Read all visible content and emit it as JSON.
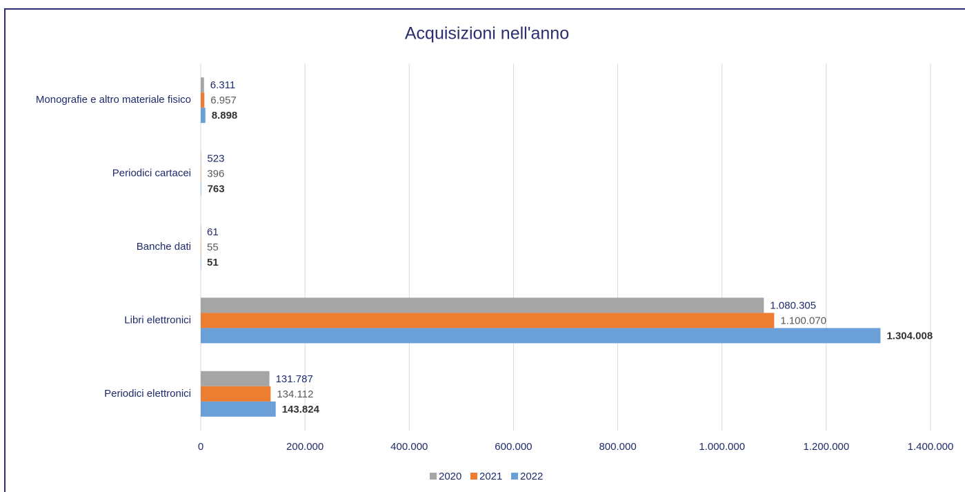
{
  "chart_data": {
    "type": "bar",
    "orientation": "horizontal",
    "title": "Acquisizioni nell'anno",
    "categories": [
      "Monografie e altro materiale fisico",
      "Periodici cartacei",
      "Banche dati",
      "Libri elettronici",
      "Periodici elettronici"
    ],
    "series": [
      {
        "name": "2020",
        "color": "#a5a5a5",
        "values": [
          6311,
          523,
          61,
          1080305,
          131787
        ],
        "value_labels": [
          "6.311",
          "523",
          "61",
          "1.080.305",
          "131.787"
        ]
      },
      {
        "name": "2021",
        "color": "#ed7d31",
        "values": [
          6957,
          396,
          55,
          1100070,
          134112
        ],
        "value_labels": [
          "6.957",
          "396",
          "55",
          "1.100.070",
          "134.112"
        ]
      },
      {
        "name": "2022",
        "color": "#6a9fd8",
        "values": [
          8898,
          763,
          51,
          1304008,
          143824
        ],
        "value_labels": [
          "8.898",
          "763",
          "51",
          "1.304.008",
          "143.824"
        ]
      }
    ],
    "xlim": [
      0,
      1400000
    ],
    "xticks": [
      0,
      {
        "value": 200000,
        "label": "200.000"
      },
      {
        "value": 400000,
        "label": "400.000"
      },
      {
        "value": 600000,
        "label": "600.000"
      },
      {
        "value": 800000,
        "label": "800.000"
      },
      {
        "value": 1000000,
        "label": "1.000.000"
      },
      {
        "value": 1200000,
        "label": "1.200.000"
      },
      {
        "value": 1400000,
        "label": "1.400.000"
      }
    ],
    "grid": true,
    "legend": "bottom"
  }
}
